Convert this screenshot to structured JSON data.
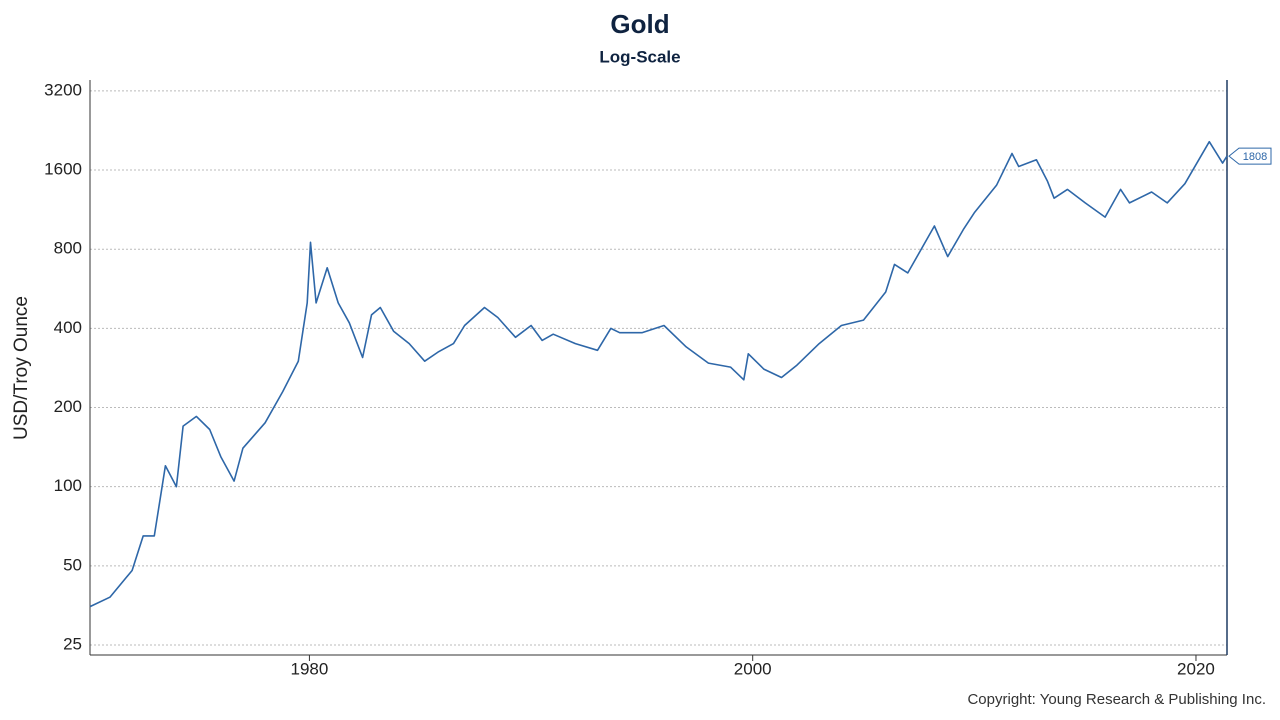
{
  "chart_data": {
    "type": "line",
    "title": "Gold",
    "subtitle": "Log-Scale",
    "y_label": "USD/Troy Ounce",
    "source": "Copyright: Young Research & Publishing Inc.",
    "yscale": "log",
    "grid": true,
    "xlim": [
      1970.1,
      2021.4
    ],
    "ylim": [
      22.9,
      3520
    ],
    "xticks": [
      1980,
      2000,
      2020
    ],
    "yticks": [
      25,
      50,
      100,
      200,
      400,
      800,
      1600,
      3200
    ],
    "x": [
      1970.1,
      1971,
      1972,
      1972.5,
      1973,
      1973.5,
      1974,
      1974.3,
      1974.9,
      1975.5,
      1976,
      1976.6,
      1977,
      1978,
      1978.8,
      1979.5,
      1979.9,
      1980.05,
      1980.3,
      1980.8,
      1981.3,
      1981.8,
      1982.4,
      1982.8,
      1983.2,
      1983.8,
      1984.5,
      1985.2,
      1985.8,
      1986.5,
      1987,
      1987.9,
      1988.5,
      1989.3,
      1990,
      1990.5,
      1991,
      1992,
      1993,
      1993.6,
      1994,
      1995,
      1996,
      1997,
      1998,
      1999,
      1999.6,
      1999.8,
      2000.5,
      2001.3,
      2002,
      2003,
      2004,
      2005,
      2006,
      2006.4,
      2007,
      2008.2,
      2008.8,
      2009.5,
      2010,
      2011,
      2011.7,
      2012,
      2012.8,
      2013.3,
      2013.6,
      2014.2,
      2015,
      2015.9,
      2016.6,
      2017,
      2018,
      2018.7,
      2019.5,
      2020.6,
      2021.2,
      2021.4
    ],
    "series": [
      {
        "name": "Gold",
        "color": "#2e67a8",
        "values": [
          35,
          38,
          48,
          65,
          65,
          120,
          100,
          170,
          185,
          165,
          130,
          105,
          140,
          175,
          230,
          300,
          500,
          850,
          500,
          680,
          500,
          420,
          310,
          450,
          480,
          390,
          350,
          300,
          325,
          350,
          410,
          480,
          440,
          370,
          410,
          360,
          380,
          350,
          330,
          400,
          385,
          385,
          410,
          340,
          295,
          285,
          255,
          320,
          280,
          260,
          290,
          350,
          410,
          430,
          550,
          700,
          650,
          980,
          750,
          950,
          1100,
          1400,
          1850,
          1650,
          1750,
          1450,
          1250,
          1350,
          1200,
          1060,
          1350,
          1200,
          1320,
          1200,
          1420,
          2050,
          1700,
          1808
        ]
      }
    ]
  }
}
